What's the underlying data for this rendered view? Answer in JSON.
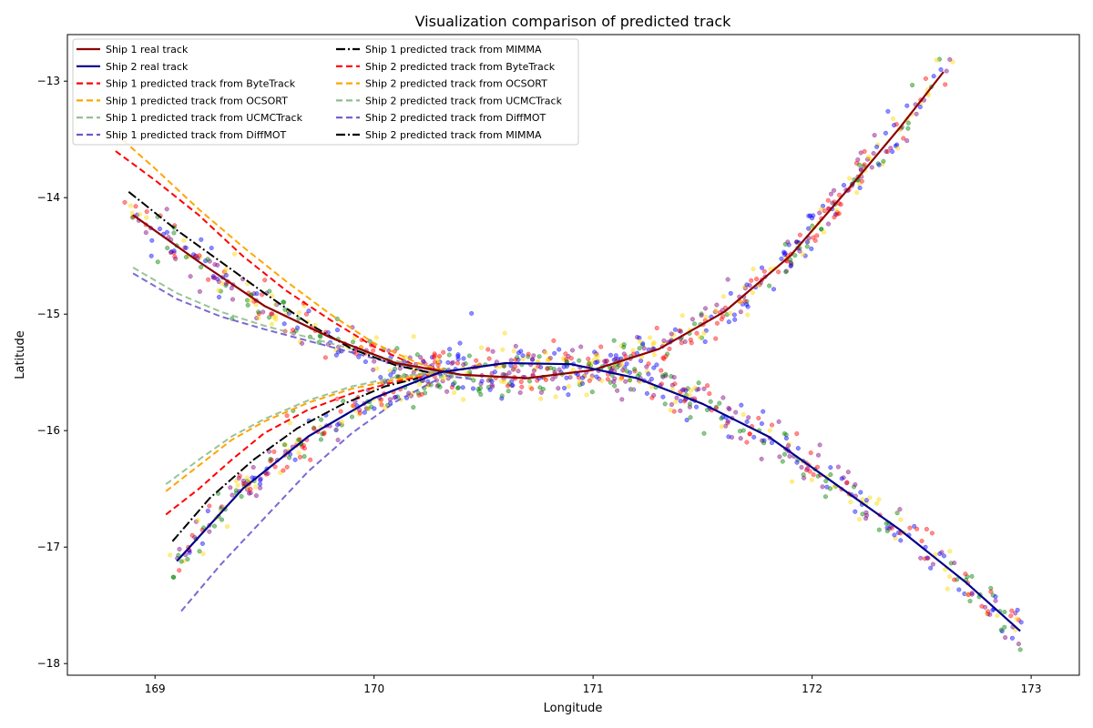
{
  "chart_data": {
    "type": "line",
    "title": "Visualization comparison of predicted track",
    "xlabel": "Longitude",
    "ylabel": "Latitude",
    "xlim": [
      168.6,
      173.22
    ],
    "ylim": [
      -18.1,
      -12.6
    ],
    "xticks": [
      169,
      170,
      171,
      172,
      173
    ],
    "yticks": [
      -18,
      -17,
      -16,
      -15,
      -14,
      -13
    ],
    "grid": false,
    "legend": {
      "placement": "top-left",
      "columns": 2
    },
    "series": [
      {
        "name": "Ship 1 real track",
        "color": "#8b0000",
        "style": "solid",
        "x": [
          168.9,
          169.2,
          169.5,
          169.8,
          170.1,
          170.4,
          170.7,
          171.0,
          171.3,
          171.6,
          171.9,
          172.2,
          172.4,
          172.6
        ],
        "y": [
          -14.15,
          -14.55,
          -14.93,
          -15.2,
          -15.42,
          -15.52,
          -15.55,
          -15.48,
          -15.3,
          -14.98,
          -14.5,
          -13.85,
          -13.4,
          -12.92
        ]
      },
      {
        "name": "Ship 2 real track",
        "color": "#00008b",
        "style": "solid",
        "x": [
          169.1,
          169.4,
          169.7,
          170.0,
          170.3,
          170.6,
          170.9,
          171.2,
          171.5,
          171.8,
          172.1,
          172.4,
          172.7,
          172.95
        ],
        "y": [
          -17.12,
          -16.5,
          -16.05,
          -15.72,
          -15.5,
          -15.42,
          -15.43,
          -15.55,
          -15.77,
          -16.05,
          -16.45,
          -16.85,
          -17.3,
          -17.72
        ]
      },
      {
        "name": "Ship 1 predicted track from ByteTrack",
        "color": "#ff0000",
        "style": "dashed",
        "x": [
          168.82,
          169.0,
          169.2,
          169.4,
          169.6,
          169.8,
          170.0,
          170.2,
          170.35
        ],
        "y": [
          -13.6,
          -13.85,
          -14.15,
          -14.5,
          -14.8,
          -15.05,
          -15.28,
          -15.45,
          -15.5
        ]
      },
      {
        "name": "Ship 1 predicted track from OCSORT",
        "color": "#ffa500",
        "style": "dashed",
        "x": [
          168.82,
          169.0,
          169.2,
          169.4,
          169.6,
          169.8,
          170.0,
          170.2,
          170.35
        ],
        "y": [
          -13.45,
          -13.75,
          -14.1,
          -14.42,
          -14.72,
          -15.0,
          -15.25,
          -15.42,
          -15.5
        ]
      },
      {
        "name": "Ship 1 predicted track from UCMCTrack",
        "color": "#8fbc8f",
        "style": "dashed",
        "x": [
          168.9,
          169.1,
          169.3,
          169.5,
          169.7,
          169.9,
          170.1,
          170.3,
          170.45
        ],
        "y": [
          -14.6,
          -14.82,
          -14.98,
          -15.1,
          -15.2,
          -15.3,
          -15.4,
          -15.5,
          -15.54
        ]
      },
      {
        "name": "Ship 1 predicted track from DiffMOT",
        "color": "#6a5acd",
        "style": "dashed",
        "x": [
          168.9,
          169.1,
          169.3,
          169.5,
          169.7,
          169.9,
          170.1,
          170.3,
          170.45
        ],
        "y": [
          -14.65,
          -14.87,
          -15.02,
          -15.13,
          -15.23,
          -15.33,
          -15.43,
          -15.52,
          -15.56
        ]
      },
      {
        "name": "Ship 1 predicted track from MIMMA",
        "color": "#000000",
        "style": "dashdot",
        "x": [
          168.88,
          169.1,
          169.3,
          169.5,
          169.7,
          169.9,
          170.1,
          170.25
        ],
        "y": [
          -13.95,
          -14.28,
          -14.55,
          -14.82,
          -15.08,
          -15.3,
          -15.44,
          -15.5
        ]
      },
      {
        "name": "Ship 2 predicted track from ByteTrack",
        "color": "#ff0000",
        "style": "dashed",
        "x": [
          169.05,
          169.2,
          169.35,
          169.5,
          169.7,
          169.9,
          170.1,
          170.25
        ],
        "y": [
          -16.72,
          -16.5,
          -16.25,
          -16.02,
          -15.82,
          -15.68,
          -15.58,
          -15.52
        ]
      },
      {
        "name": "Ship 2 predicted track from OCSORT",
        "color": "#ffa500",
        "style": "dashed",
        "x": [
          169.05,
          169.2,
          169.35,
          169.5,
          169.7,
          169.9,
          170.1,
          170.3
        ],
        "y": [
          -16.52,
          -16.3,
          -16.08,
          -15.92,
          -15.76,
          -15.64,
          -15.56,
          -15.5
        ]
      },
      {
        "name": "Ship 2 predicted track from UCMCTrack",
        "color": "#8fbc8f",
        "style": "dashed",
        "x": [
          169.05,
          169.2,
          169.35,
          169.5,
          169.7,
          169.9,
          170.1,
          170.3
        ],
        "y": [
          -16.46,
          -16.25,
          -16.05,
          -15.9,
          -15.74,
          -15.62,
          -15.54,
          -15.49
        ]
      },
      {
        "name": "Ship 2 predicted track from DiffMOT",
        "color": "#6a5acd",
        "style": "dashed",
        "x": [
          169.12,
          169.3,
          169.5,
          169.7,
          169.9,
          170.1,
          170.3
        ],
        "y": [
          -17.55,
          -17.15,
          -16.75,
          -16.35,
          -16.02,
          -15.75,
          -15.55
        ]
      },
      {
        "name": "Ship 2 predicted track from MIMMA",
        "color": "#000000",
        "style": "dashdot",
        "x": [
          169.08,
          169.25,
          169.45,
          169.65,
          169.85,
          170.05,
          170.2
        ],
        "y": [
          -16.95,
          -16.58,
          -16.25,
          -15.98,
          -15.78,
          -15.62,
          -15.55
        ]
      }
    ],
    "scatter_colors": [
      "#ff0000",
      "#0000ff",
      "#008000",
      "#800080",
      "#ffd700"
    ]
  }
}
